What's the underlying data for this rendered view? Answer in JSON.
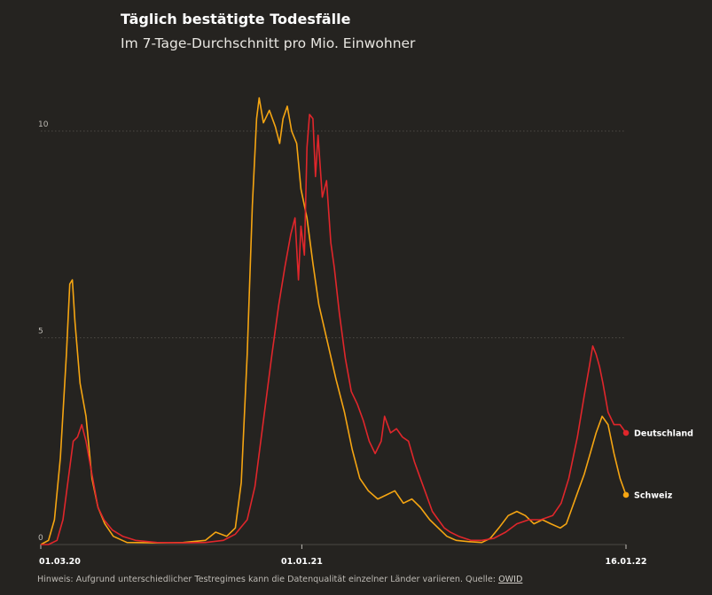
{
  "title": "Täglich bestätigte Todesfälle",
  "subtitle": "Im 7-Tage-Durchschnitt pro Mio. Einwohner",
  "footnote": {
    "text": "Hinweis: Aufgrund unterschiedlicher Testregimes kann die Datenqualität einzelner Länder variieren. Quelle: ",
    "source": "OWID"
  },
  "colors": {
    "background": "#252320",
    "grid": "#5a5752",
    "deutschland": "#e0262b",
    "schweiz": "#f5a512"
  },
  "chart_data": {
    "type": "line",
    "x_start": "2020-03-01",
    "x_end": "2022-01-16",
    "ylim": [
      0,
      10.6
    ],
    "y_ticks": [
      {
        "value": 0,
        "label": "0"
      },
      {
        "value": 5,
        "label": "5"
      },
      {
        "value": 10,
        "label": "10"
      }
    ],
    "x_ticks": [
      {
        "date": "2020-03-01",
        "label": "01.03.20"
      },
      {
        "date": "2021-01-01",
        "label": "01.01.21"
      },
      {
        "date": "2022-01-16",
        "label": "16.01.22"
      }
    ],
    "grid": true,
    "series": [
      {
        "name": "Schweiz",
        "color": "#f5a512",
        "points": [
          [
            "2020-03-01",
            0
          ],
          [
            "2020-03-10",
            0.1
          ],
          [
            "2020-03-17",
            0.6
          ],
          [
            "2020-03-24",
            2.1
          ],
          [
            "2020-03-31",
            4.6
          ],
          [
            "2020-04-04",
            6.3
          ],
          [
            "2020-04-07",
            6.4
          ],
          [
            "2020-04-10",
            5.4
          ],
          [
            "2020-04-16",
            3.9
          ],
          [
            "2020-04-23",
            3.1
          ],
          [
            "2020-04-30",
            1.6
          ],
          [
            "2020-05-07",
            0.9
          ],
          [
            "2020-05-15",
            0.5
          ],
          [
            "2020-05-25",
            0.2
          ],
          [
            "2020-06-10",
            0.05
          ],
          [
            "2020-07-15",
            0.04
          ],
          [
            "2020-08-15",
            0.05
          ],
          [
            "2020-09-10",
            0.1
          ],
          [
            "2020-09-22",
            0.3
          ],
          [
            "2020-10-05",
            0.2
          ],
          [
            "2020-10-15",
            0.4
          ],
          [
            "2020-10-22",
            1.5
          ],
          [
            "2020-10-29",
            4.6
          ],
          [
            "2020-11-04",
            8.2
          ],
          [
            "2020-11-09",
            10.3
          ],
          [
            "2020-11-12",
            10.8
          ],
          [
            "2020-11-17",
            10.2
          ],
          [
            "2020-11-24",
            10.5
          ],
          [
            "2020-12-01",
            10.1
          ],
          [
            "2020-12-06",
            9.7
          ],
          [
            "2020-12-10",
            10.3
          ],
          [
            "2020-12-15",
            10.6
          ],
          [
            "2020-12-20",
            10.0
          ],
          [
            "2020-12-26",
            9.7
          ],
          [
            "2020-12-31",
            8.6
          ],
          [
            "2021-01-07",
            7.9
          ],
          [
            "2021-01-14",
            6.8
          ],
          [
            "2021-01-21",
            5.8
          ],
          [
            "2021-01-31",
            4.9
          ],
          [
            "2021-02-10",
            4.0
          ],
          [
            "2021-02-20",
            3.2
          ],
          [
            "2021-03-01",
            2.3
          ],
          [
            "2021-03-10",
            1.6
          ],
          [
            "2021-03-20",
            1.3
          ],
          [
            "2021-03-31",
            1.1
          ],
          [
            "2021-04-10",
            1.2
          ],
          [
            "2021-04-20",
            1.3
          ],
          [
            "2021-04-30",
            1.0
          ],
          [
            "2021-05-10",
            1.1
          ],
          [
            "2021-05-20",
            0.9
          ],
          [
            "2021-05-31",
            0.6
          ],
          [
            "2021-06-10",
            0.4
          ],
          [
            "2021-06-20",
            0.2
          ],
          [
            "2021-07-01",
            0.1
          ],
          [
            "2021-07-15",
            0.07
          ],
          [
            "2021-07-31",
            0.05
          ],
          [
            "2021-08-10",
            0.15
          ],
          [
            "2021-08-20",
            0.4
          ],
          [
            "2021-08-31",
            0.7
          ],
          [
            "2021-09-10",
            0.8
          ],
          [
            "2021-09-20",
            0.7
          ],
          [
            "2021-09-30",
            0.5
          ],
          [
            "2021-10-10",
            0.6
          ],
          [
            "2021-10-20",
            0.5
          ],
          [
            "2021-10-31",
            0.4
          ],
          [
            "2021-11-07",
            0.5
          ],
          [
            "2021-11-14",
            0.9
          ],
          [
            "2021-11-21",
            1.3
          ],
          [
            "2021-11-28",
            1.7
          ],
          [
            "2021-12-05",
            2.2
          ],
          [
            "2021-12-12",
            2.7
          ],
          [
            "2021-12-19",
            3.1
          ],
          [
            "2021-12-26",
            2.9
          ],
          [
            "2022-01-02",
            2.2
          ],
          [
            "2022-01-09",
            1.6
          ],
          [
            "2022-01-16",
            1.2
          ]
        ]
      },
      {
        "name": "Deutschland",
        "color": "#e0262b",
        "points": [
          [
            "2020-03-01",
            0
          ],
          [
            "2020-03-10",
            0.0
          ],
          [
            "2020-03-20",
            0.1
          ],
          [
            "2020-03-27",
            0.6
          ],
          [
            "2020-04-03",
            1.7
          ],
          [
            "2020-04-08",
            2.5
          ],
          [
            "2020-04-13",
            2.6
          ],
          [
            "2020-04-18",
            2.9
          ],
          [
            "2020-04-23",
            2.5
          ],
          [
            "2020-04-30",
            1.7
          ],
          [
            "2020-05-07",
            0.9
          ],
          [
            "2020-05-14",
            0.6
          ],
          [
            "2020-05-24",
            0.35
          ],
          [
            "2020-06-05",
            0.2
          ],
          [
            "2020-06-20",
            0.1
          ],
          [
            "2020-07-15",
            0.05
          ],
          [
            "2020-08-15",
            0.04
          ],
          [
            "2020-09-10",
            0.05
          ],
          [
            "2020-10-01",
            0.1
          ],
          [
            "2020-10-15",
            0.25
          ],
          [
            "2020-10-29",
            0.6
          ],
          [
            "2020-11-07",
            1.4
          ],
          [
            "2020-11-17",
            3.0
          ],
          [
            "2020-11-27",
            4.6
          ],
          [
            "2020-12-05",
            5.8
          ],
          [
            "2020-12-12",
            6.7
          ],
          [
            "2020-12-19",
            7.5
          ],
          [
            "2020-12-24",
            7.9
          ],
          [
            "2020-12-28",
            6.4
          ],
          [
            "2020-12-31",
            7.7
          ],
          [
            "2021-01-04",
            7.0
          ],
          [
            "2021-01-07",
            9.6
          ],
          [
            "2021-01-10",
            10.4
          ],
          [
            "2021-01-14",
            10.3
          ],
          [
            "2021-01-17",
            8.9
          ],
          [
            "2021-01-20",
            9.9
          ],
          [
            "2021-01-25",
            8.4
          ],
          [
            "2021-01-30",
            8.8
          ],
          [
            "2021-02-04",
            7.3
          ],
          [
            "2021-02-08",
            6.7
          ],
          [
            "2021-02-14",
            5.6
          ],
          [
            "2021-02-21",
            4.5
          ],
          [
            "2021-02-28",
            3.7
          ],
          [
            "2021-03-07",
            3.4
          ],
          [
            "2021-03-14",
            3.0
          ],
          [
            "2021-03-21",
            2.5
          ],
          [
            "2021-03-28",
            2.2
          ],
          [
            "2021-04-04",
            2.5
          ],
          [
            "2021-04-08",
            3.1
          ],
          [
            "2021-04-15",
            2.7
          ],
          [
            "2021-04-22",
            2.8
          ],
          [
            "2021-04-29",
            2.6
          ],
          [
            "2021-05-06",
            2.5
          ],
          [
            "2021-05-13",
            2.0
          ],
          [
            "2021-05-20",
            1.6
          ],
          [
            "2021-05-27",
            1.2
          ],
          [
            "2021-06-03",
            0.8
          ],
          [
            "2021-06-10",
            0.6
          ],
          [
            "2021-06-17",
            0.4
          ],
          [
            "2021-06-24",
            0.3
          ],
          [
            "2021-07-04",
            0.2
          ],
          [
            "2021-07-18",
            0.1
          ],
          [
            "2021-07-31",
            0.1
          ],
          [
            "2021-08-14",
            0.15
          ],
          [
            "2021-08-28",
            0.3
          ],
          [
            "2021-09-10",
            0.5
          ],
          [
            "2021-09-24",
            0.6
          ],
          [
            "2021-10-08",
            0.6
          ],
          [
            "2021-10-22",
            0.7
          ],
          [
            "2021-11-01",
            1.0
          ],
          [
            "2021-11-10",
            1.6
          ],
          [
            "2021-11-20",
            2.6
          ],
          [
            "2021-11-28",
            3.6
          ],
          [
            "2021-12-04",
            4.3
          ],
          [
            "2021-12-08",
            4.8
          ],
          [
            "2021-12-12",
            4.6
          ],
          [
            "2021-12-16",
            4.3
          ],
          [
            "2021-12-20",
            3.9
          ],
          [
            "2021-12-26",
            3.2
          ],
          [
            "2022-01-02",
            2.9
          ],
          [
            "2022-01-09",
            2.9
          ],
          [
            "2022-01-16",
            2.7
          ]
        ]
      }
    ]
  }
}
